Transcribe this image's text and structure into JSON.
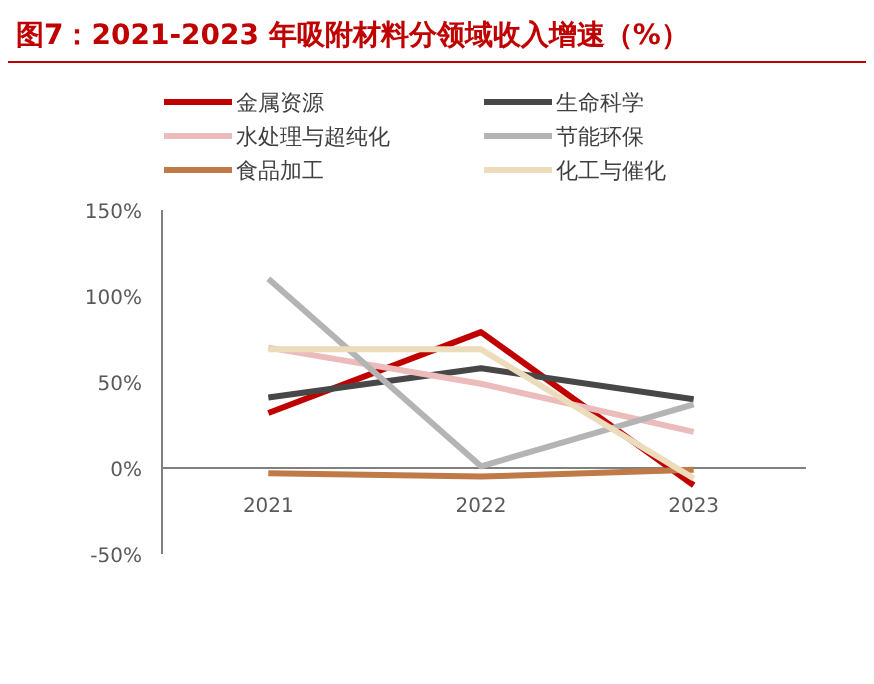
{
  "chart_data": {
    "type": "line",
    "title": "图7：2021-2023 年吸附材料分领域收入增速（%）",
    "categories": [
      "2021",
      "2022",
      "2023"
    ],
    "series": [
      {
        "name": "金属资源",
        "color": "#c00000",
        "values": [
          32,
          79,
          -10
        ]
      },
      {
        "name": "生命科学",
        "color": "#474747",
        "values": [
          41,
          58,
          40
        ]
      },
      {
        "name": "水处理与超纯化",
        "color": "#ecbcbc",
        "values": [
          70,
          49,
          21
        ]
      },
      {
        "name": "节能环保",
        "color": "#b4b4b4",
        "values": [
          110,
          1,
          37
        ]
      },
      {
        "name": "食品加工",
        "color": "#c07a48",
        "values": [
          -3,
          -5,
          -1
        ]
      },
      {
        "name": "化工与催化",
        "color": "#ecdcbc",
        "values": [
          69,
          69,
          -6
        ]
      }
    ],
    "ylim": [
      -50,
      150
    ],
    "yticks": [
      {
        "value": -50,
        "label": "-50%"
      },
      {
        "value": 0,
        "label": "0%"
      },
      {
        "value": 50,
        "label": "50%"
      },
      {
        "value": 100,
        "label": "100%"
      },
      {
        "value": 150,
        "label": "150%"
      }
    ],
    "legend": "top",
    "grid": false,
    "marker": "none",
    "line_style": "solid"
  }
}
